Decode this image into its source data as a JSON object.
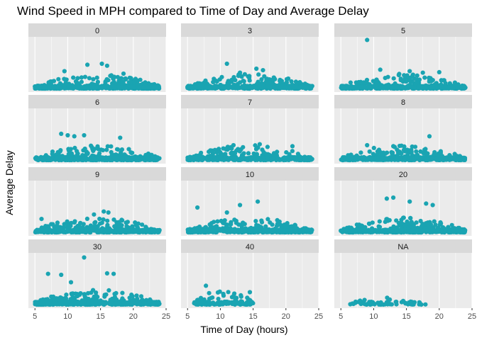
{
  "colors": {
    "point": "#1aa4b2",
    "panel_bg": "#ebebeb",
    "strip_bg": "#d9d9d9",
    "grid": "#ffffff"
  },
  "chart_data": {
    "type": "scatter",
    "facet": "small-multiples",
    "title": "Wind Speed in MPH compared to Time of Day and Average Delay",
    "xlabel": "Time of Day (hours)",
    "ylabel": "Average Delay",
    "xlim": [
      4,
      25
    ],
    "x_ticks": [
      5,
      10,
      15,
      20,
      25
    ],
    "y_ticks_shown": false,
    "grid": true,
    "panels": [
      {
        "label": "0",
        "x_range": [
          5,
          24
        ],
        "density": 1.0,
        "max_y": 0.52,
        "outliers": [
          [
            13,
            0.48
          ],
          [
            15.2,
            0.5
          ],
          [
            16,
            0.46
          ],
          [
            9.5,
            0.35
          ],
          [
            18.5,
            0.3
          ]
        ]
      },
      {
        "label": "3",
        "x_range": [
          5,
          24
        ],
        "density": 0.9,
        "max_y": 0.5,
        "outliers": [
          [
            11,
            0.5
          ],
          [
            15.5,
            0.4
          ],
          [
            16.5,
            0.37
          ],
          [
            13,
            0.32
          ]
        ]
      },
      {
        "label": "5",
        "x_range": [
          5,
          24
        ],
        "density": 0.9,
        "max_y": 0.98,
        "outliers": [
          [
            9,
            0.98
          ],
          [
            11,
            0.38
          ],
          [
            15.5,
            0.35
          ],
          [
            17.5,
            0.32
          ],
          [
            20,
            0.33
          ]
        ]
      },
      {
        "label": "6",
        "x_range": [
          5,
          24
        ],
        "density": 1.0,
        "max_y": 0.55,
        "outliers": [
          [
            9,
            0.53
          ],
          [
            10,
            0.5
          ],
          [
            11,
            0.48
          ],
          [
            12.5,
            0.5
          ],
          [
            18,
            0.45
          ]
        ]
      },
      {
        "label": "7",
        "x_range": [
          5,
          24
        ],
        "density": 0.85,
        "max_y": 0.35,
        "outliers": [
          [
            12,
            0.3
          ],
          [
            16,
            0.32
          ],
          [
            21,
            0.28
          ]
        ]
      },
      {
        "label": "8",
        "x_range": [
          5,
          24
        ],
        "density": 0.85,
        "max_y": 0.48,
        "outliers": [
          [
            18.5,
            0.48
          ],
          [
            9,
            0.3
          ],
          [
            13,
            0.28
          ]
        ]
      },
      {
        "label": "9",
        "x_range": [
          5,
          24
        ],
        "density": 0.9,
        "max_y": 0.45,
        "outliers": [
          [
            15.5,
            0.42
          ],
          [
            16.2,
            0.4
          ],
          [
            14,
            0.36
          ],
          [
            6,
            0.27
          ]
        ]
      },
      {
        "label": "10",
        "x_range": [
          5,
          24
        ],
        "density": 1.0,
        "max_y": 0.62,
        "outliers": [
          [
            15.7,
            0.62
          ],
          [
            13,
            0.55
          ],
          [
            6.5,
            0.5
          ],
          [
            11,
            0.4
          ]
        ]
      },
      {
        "label": "20",
        "x_range": [
          5,
          24
        ],
        "density": 1.0,
        "max_y": 0.7,
        "outliers": [
          [
            12,
            0.68
          ],
          [
            13,
            0.7
          ],
          [
            15.5,
            0.62
          ],
          [
            18,
            0.58
          ],
          [
            19,
            0.55
          ]
        ]
      },
      {
        "label": "30",
        "x_range": [
          5,
          24
        ],
        "density": 1.0,
        "max_y": 0.95,
        "outliers": [
          [
            12.5,
            0.95
          ],
          [
            7,
            0.62
          ],
          [
            9,
            0.6
          ],
          [
            16,
            0.63
          ],
          [
            17,
            0.62
          ],
          [
            10.5,
            0.45
          ]
        ]
      },
      {
        "label": "40",
        "x_range": [
          6,
          15
        ],
        "density": 0.3,
        "max_y": 0.4,
        "outliers": [
          [
            7.8,
            0.38
          ],
          [
            14.5,
            0.25
          ],
          [
            10.5,
            0.18
          ]
        ]
      },
      {
        "label": "NA",
        "x_range": [
          6,
          18
        ],
        "density": 0.15,
        "max_y": 0.12,
        "outliers": []
      }
    ]
  }
}
